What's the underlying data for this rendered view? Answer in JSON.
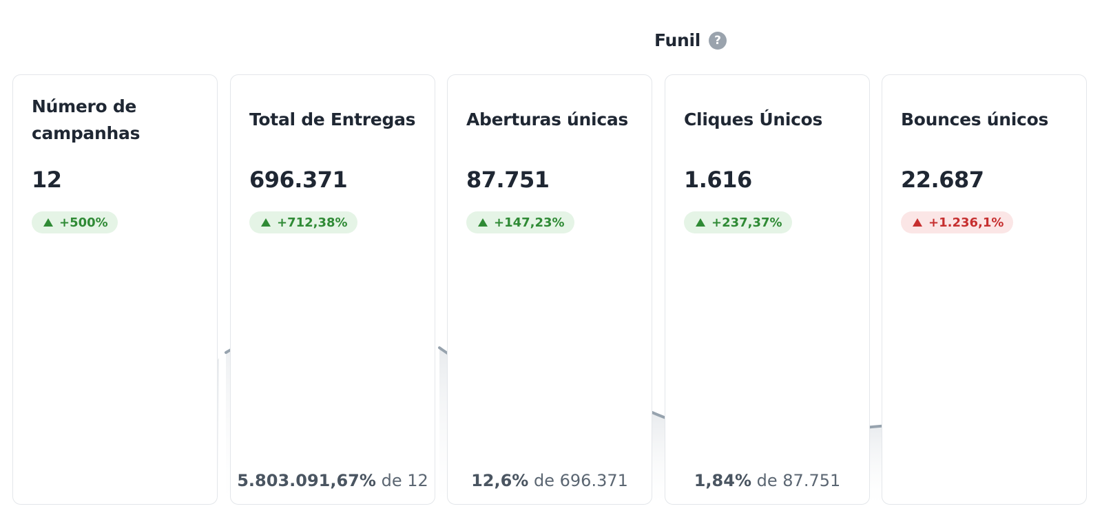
{
  "header": {
    "title": "Funil",
    "help_icon": "question-circle-icon"
  },
  "cards": [
    {
      "id": "campaigns",
      "title": "Número de campanhas",
      "value": "12",
      "change": "+500%",
      "trend": "up",
      "ratio_pct": "",
      "ratio_of": ""
    },
    {
      "id": "deliveries",
      "title": "Total de Entregas",
      "value": "696.371",
      "change": "+712,38%",
      "trend": "up",
      "ratio_pct": "5.803.091,67%",
      "ratio_of": "12"
    },
    {
      "id": "opens",
      "title": "Aberturas únicas",
      "value": "87.751",
      "change": "+147,23%",
      "trend": "up",
      "ratio_pct": "12,6%",
      "ratio_of": "696.371"
    },
    {
      "id": "clicks",
      "title": "Cliques Únicos",
      "value": "1.616",
      "change": "+237,37%",
      "trend": "up",
      "ratio_pct": "1,84%",
      "ratio_of": "87.751"
    },
    {
      "id": "bounces",
      "title": "Bounces únicos",
      "value": "22.687",
      "change": "+1.236,1%",
      "trend": "down",
      "ratio_pct": "",
      "ratio_of": ""
    }
  ],
  "footer_connector": "de",
  "colors": {
    "badge_up_bg": "#e5f4e6",
    "badge_up_text": "#2f8a35",
    "badge_down_bg": "#fbe6e6",
    "badge_down_text": "#c62f2f",
    "curve": "#97a3ae"
  }
}
